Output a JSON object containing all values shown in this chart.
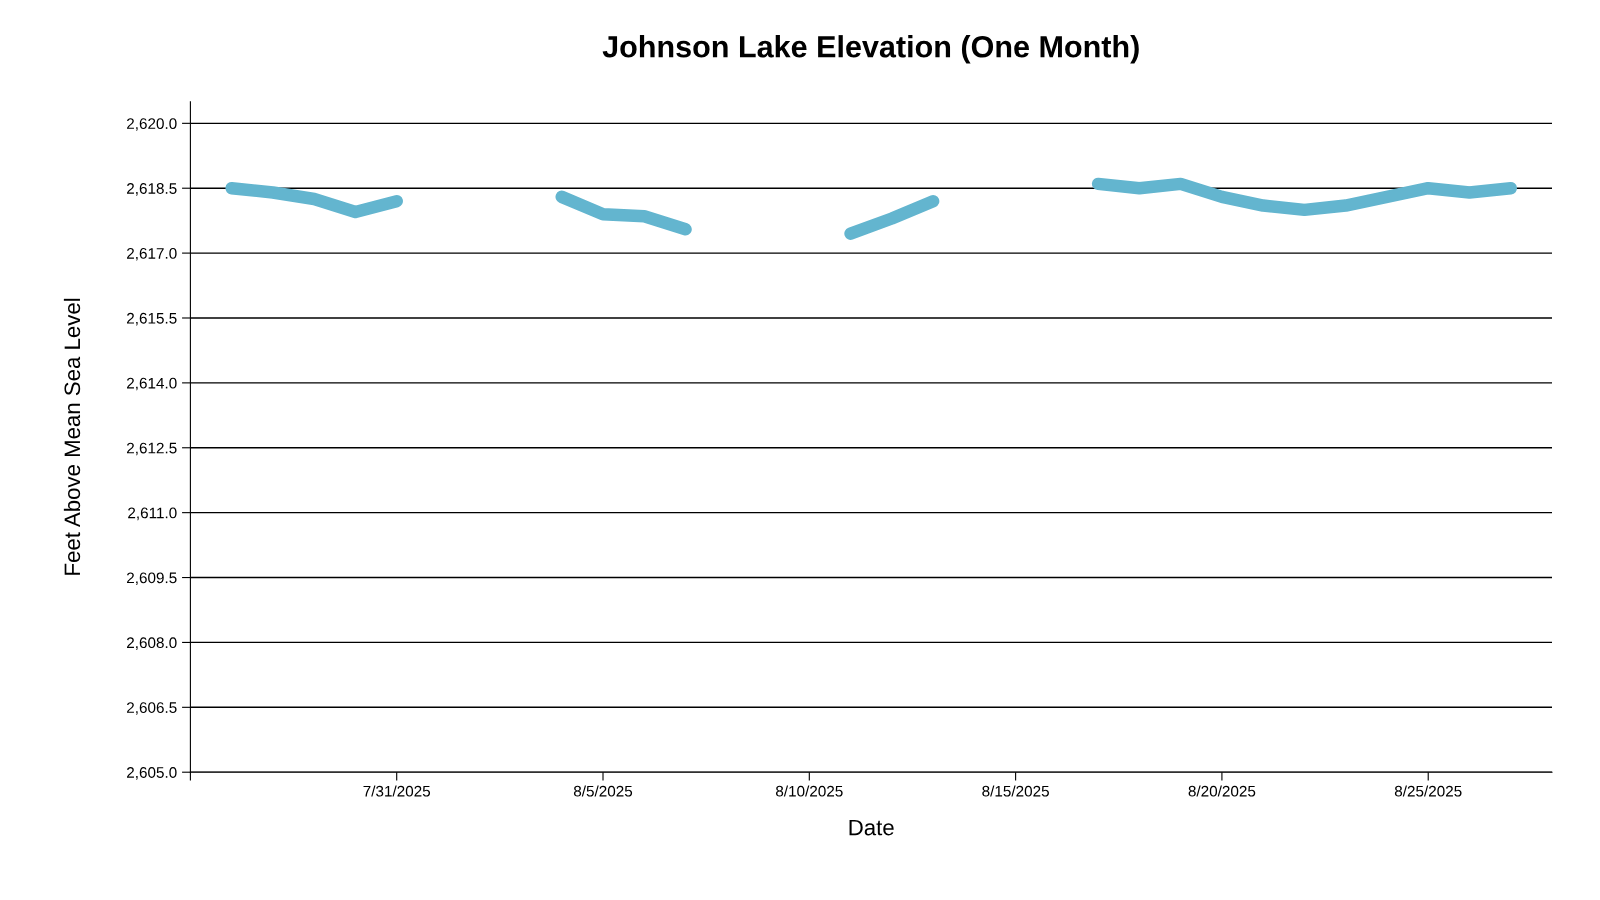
{
  "chart_data": {
    "type": "line",
    "title": "Johnson Lake Elevation (One Month)",
    "xlabel": "Date",
    "ylabel": "Feet Above Mean Sea Level",
    "x": [
      "2025-07-27",
      "2025-07-28",
      "2025-07-29",
      "2025-07-30",
      "2025-07-31",
      "2025-08-01",
      "2025-08-02",
      "2025-08-03",
      "2025-08-04",
      "2025-08-05",
      "2025-08-06",
      "2025-08-07",
      "2025-08-08",
      "2025-08-09",
      "2025-08-10",
      "2025-08-11",
      "2025-08-12",
      "2025-08-13",
      "2025-08-14",
      "2025-08-15",
      "2025-08-16",
      "2025-08-17",
      "2025-08-18",
      "2025-08-19",
      "2025-08-20",
      "2025-08-21",
      "2025-08-22",
      "2025-08-23",
      "2025-08-24",
      "2025-08-25",
      "2025-08-26",
      "2025-08-27"
    ],
    "series": [
      {
        "color": "#63b5cf",
        "values": [
          2618.5,
          2618.4,
          2618.25,
          2617.95,
          2618.2,
          null,
          null,
          null,
          2618.3,
          2617.9,
          2617.85,
          2617.55,
          null,
          null,
          null,
          2617.45,
          2617.8,
          2618.2,
          null,
          null,
          null,
          2618.6,
          2618.5,
          2618.6,
          2618.3,
          2618.1,
          2618.0,
          2618.1,
          2618.3,
          2618.5,
          2618.4,
          2618.5
        ]
      }
    ],
    "xlim": [
      "2025-07-26",
      "2025-08-28"
    ],
    "xticks": [
      {
        "value": "2025-07-26",
        "label": null
      },
      {
        "value": "2025-07-31",
        "label": "7/31/2025"
      },
      {
        "value": "2025-08-05",
        "label": "8/5/2025"
      },
      {
        "value": "2025-08-10",
        "label": "8/10/2025"
      },
      {
        "value": "2025-08-15",
        "label": "8/15/2025"
      },
      {
        "value": "2025-08-20",
        "label": "8/20/2025"
      },
      {
        "value": "2025-08-25",
        "label": "8/25/2025"
      }
    ],
    "ylim": [
      2605.0,
      2620.5
    ],
    "yticks": [
      {
        "value": 2605,
        "label": "2,605.0"
      },
      {
        "value": 2606.5,
        "label": "2,606.5"
      },
      {
        "value": 2608,
        "label": "2,608.0"
      },
      {
        "value": 2609.5,
        "label": "2,609.5"
      },
      {
        "value": 2611,
        "label": "2,611.0"
      },
      {
        "value": 2612.5,
        "label": "2,612.5"
      },
      {
        "value": 2614,
        "label": "2,614.0"
      },
      {
        "value": 2615.5,
        "label": "2,615.5"
      },
      {
        "value": 2617,
        "label": "2,617.0"
      },
      {
        "value": 2618.5,
        "label": "2,618.5"
      },
      {
        "value": 2620,
        "label": "2,620.0"
      }
    ],
    "grid": "y",
    "legend": false
  }
}
